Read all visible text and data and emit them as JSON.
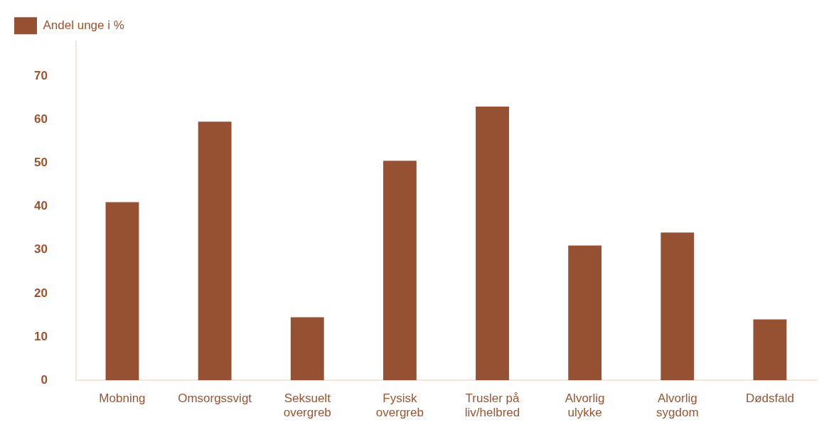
{
  "chart_data": {
    "type": "bar",
    "categories": [
      "Mobning",
      "Omsorgssvigt",
      "Seksuelt overgreb",
      "Fysisk overgreb",
      "Trusler på liv/helbred",
      "Alvorlig ulykke",
      "Alvorlig sygdom",
      "Dødsfald"
    ],
    "series": [
      {
        "name": "Andel unge i %",
        "color": "#955132",
        "values": [
          41,
          59.5,
          14.5,
          50.5,
          63,
          31,
          34,
          14
        ]
      }
    ],
    "ylim": [
      0,
      78
    ],
    "yticks": [
      0,
      10,
      20,
      30,
      40,
      50,
      60,
      70
    ],
    "grid": false,
    "legend": "top left"
  }
}
